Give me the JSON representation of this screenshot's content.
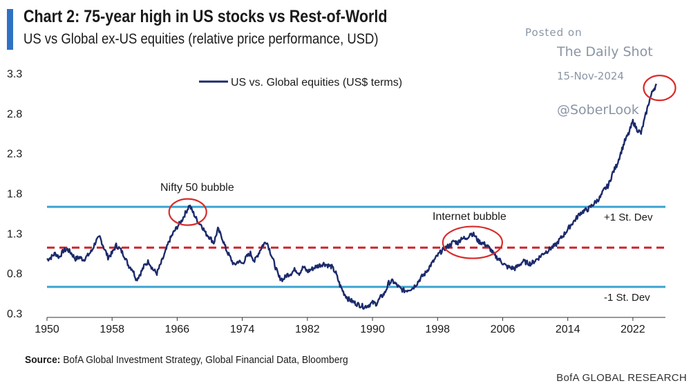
{
  "header": {
    "title": "Chart 2: 75-year high in US stocks vs Rest-of-World",
    "subtitle": "US vs Global ex-US equities (relative price performance, USD)"
  },
  "watermark": {
    "posted": "Posted on",
    "site": "The Daily Shot",
    "date": "15-Nov-2024",
    "handle": "@SoberLook"
  },
  "footer": {
    "source_label": "Source:",
    "source_text": "BofA Global Investment Strategy, Global Financial Data, Bloomberg",
    "brand": "BofA GLOBAL RESEARCH"
  },
  "colors": {
    "series": "#1b2a6b",
    "std_lines": "#3aa3d0",
    "mean_line": "#cc2229",
    "highlight_circles": "#d92b2b",
    "accent_bar": "#2f72c4",
    "axis": "#333333"
  },
  "chart_data": {
    "type": "line",
    "title": "Chart 2: 75-year high in US stocks vs Rest-of-World",
    "xlim": [
      1950,
      2026
    ],
    "ylim": [
      0.3,
      3.3
    ],
    "x_ticks": [
      1950,
      1958,
      1966,
      1974,
      1982,
      1990,
      1998,
      2006,
      2014,
      2022
    ],
    "y_ticks": [
      0.3,
      0.8,
      1.3,
      1.8,
      2.3,
      2.8,
      3.3
    ],
    "y_tick_labels": [
      "0.3",
      "0.8",
      "1.3",
      "1.8",
      "2.3",
      "2.8",
      "3.3"
    ],
    "legend": {
      "label": "US vs. Global equities (US$ terms)",
      "position": "top-left"
    },
    "grid": false,
    "series": [
      {
        "name": "US vs. Global equities (US$ terms)",
        "points": [
          [
            1950.0,
            0.97
          ],
          [
            1950.5,
            1.0
          ],
          [
            1951.0,
            1.05
          ],
          [
            1951.5,
            1.0
          ],
          [
            1952.0,
            1.08
          ],
          [
            1952.5,
            1.1
          ],
          [
            1953.0,
            1.05
          ],
          [
            1953.5,
            0.98
          ],
          [
            1954.0,
            1.0
          ],
          [
            1954.5,
            0.97
          ],
          [
            1955.0,
            1.02
          ],
          [
            1955.5,
            1.08
          ],
          [
            1956.0,
            1.2
          ],
          [
            1956.5,
            1.25
          ],
          [
            1957.0,
            1.12
          ],
          [
            1957.5,
            1.0
          ],
          [
            1958.0,
            1.05
          ],
          [
            1958.5,
            1.15
          ],
          [
            1959.0,
            1.1
          ],
          [
            1959.5,
            1.02
          ],
          [
            1960.0,
            0.9
          ],
          [
            1960.5,
            0.85
          ],
          [
            1961.0,
            0.72
          ],
          [
            1961.5,
            0.8
          ],
          [
            1962.0,
            0.9
          ],
          [
            1962.5,
            0.95
          ],
          [
            1963.0,
            0.85
          ],
          [
            1963.5,
            0.8
          ],
          [
            1964.0,
            0.92
          ],
          [
            1964.5,
            1.05
          ],
          [
            1965.0,
            1.2
          ],
          [
            1965.5,
            1.3
          ],
          [
            1966.0,
            1.38
          ],
          [
            1966.5,
            1.45
          ],
          [
            1967.0,
            1.55
          ],
          [
            1967.5,
            1.65
          ],
          [
            1968.0,
            1.55
          ],
          [
            1968.5,
            1.45
          ],
          [
            1969.0,
            1.4
          ],
          [
            1969.5,
            1.3
          ],
          [
            1970.0,
            1.25
          ],
          [
            1970.5,
            1.18
          ],
          [
            1971.0,
            1.35
          ],
          [
            1971.5,
            1.25
          ],
          [
            1972.0,
            1.1
          ],
          [
            1972.5,
            1.0
          ],
          [
            1973.0,
            0.9
          ],
          [
            1973.5,
            0.95
          ],
          [
            1974.0,
            0.92
          ],
          [
            1974.5,
            1.0
          ],
          [
            1975.0,
            1.05
          ],
          [
            1975.5,
            0.95
          ],
          [
            1976.0,
            1.05
          ],
          [
            1976.5,
            1.15
          ],
          [
            1977.0,
            1.2
          ],
          [
            1977.5,
            1.05
          ],
          [
            1978.0,
            0.9
          ],
          [
            1978.5,
            0.75
          ],
          [
            1979.0,
            0.72
          ],
          [
            1979.5,
            0.78
          ],
          [
            1980.0,
            0.8
          ],
          [
            1980.5,
            0.85
          ],
          [
            1981.0,
            0.8
          ],
          [
            1981.5,
            0.88
          ],
          [
            1982.0,
            0.82
          ],
          [
            1982.5,
            0.85
          ],
          [
            1983.0,
            0.88
          ],
          [
            1983.5,
            0.9
          ],
          [
            1984.0,
            0.92
          ],
          [
            1984.5,
            0.9
          ],
          [
            1985.0,
            0.88
          ],
          [
            1985.5,
            0.8
          ],
          [
            1986.0,
            0.65
          ],
          [
            1986.5,
            0.55
          ],
          [
            1987.0,
            0.48
          ],
          [
            1987.5,
            0.45
          ],
          [
            1988.0,
            0.42
          ],
          [
            1988.5,
            0.4
          ],
          [
            1989.0,
            0.38
          ],
          [
            1989.5,
            0.4
          ],
          [
            1990.0,
            0.43
          ],
          [
            1990.5,
            0.42
          ],
          [
            1991.0,
            0.5
          ],
          [
            1991.5,
            0.55
          ],
          [
            1992.0,
            0.68
          ],
          [
            1992.5,
            0.7
          ],
          [
            1993.0,
            0.65
          ],
          [
            1993.5,
            0.6
          ],
          [
            1994.0,
            0.58
          ],
          [
            1994.5,
            0.6
          ],
          [
            1995.0,
            0.62
          ],
          [
            1995.5,
            0.68
          ],
          [
            1996.0,
            0.75
          ],
          [
            1996.5,
            0.8
          ],
          [
            1997.0,
            0.88
          ],
          [
            1997.5,
            0.95
          ],
          [
            1998.0,
            1.02
          ],
          [
            1998.5,
            1.08
          ],
          [
            1999.0,
            1.12
          ],
          [
            1999.5,
            1.15
          ],
          [
            2000.0,
            1.2
          ],
          [
            2000.5,
            1.18
          ],
          [
            2001.0,
            1.25
          ],
          [
            2001.5,
            1.22
          ],
          [
            2002.0,
            1.3
          ],
          [
            2002.5,
            1.28
          ],
          [
            2003.0,
            1.2
          ],
          [
            2003.5,
            1.18
          ],
          [
            2004.0,
            1.15
          ],
          [
            2004.5,
            1.1
          ],
          [
            2005.0,
            1.02
          ],
          [
            2005.5,
            0.98
          ],
          [
            2006.0,
            0.93
          ],
          [
            2006.5,
            0.88
          ],
          [
            2007.0,
            0.87
          ],
          [
            2007.5,
            0.86
          ],
          [
            2008.0,
            0.9
          ],
          [
            2008.5,
            0.95
          ],
          [
            2009.0,
            0.93
          ],
          [
            2009.5,
            0.92
          ],
          [
            2010.0,
            0.96
          ],
          [
            2010.5,
            1.0
          ],
          [
            2011.0,
            1.05
          ],
          [
            2011.5,
            1.08
          ],
          [
            2012.0,
            1.12
          ],
          [
            2012.5,
            1.15
          ],
          [
            2013.0,
            1.22
          ],
          [
            2013.5,
            1.28
          ],
          [
            2014.0,
            1.35
          ],
          [
            2014.5,
            1.42
          ],
          [
            2015.0,
            1.48
          ],
          [
            2015.5,
            1.55
          ],
          [
            2016.0,
            1.58
          ],
          [
            2016.5,
            1.6
          ],
          [
            2017.0,
            1.65
          ],
          [
            2017.5,
            1.7
          ],
          [
            2018.0,
            1.75
          ],
          [
            2018.5,
            1.85
          ],
          [
            2019.0,
            1.9
          ],
          [
            2019.5,
            2.05
          ],
          [
            2020.0,
            2.15
          ],
          [
            2020.5,
            2.3
          ],
          [
            2021.0,
            2.45
          ],
          [
            2021.5,
            2.55
          ],
          [
            2022.0,
            2.7
          ],
          [
            2022.5,
            2.6
          ],
          [
            2023.0,
            2.55
          ],
          [
            2023.5,
            2.75
          ],
          [
            2024.0,
            2.95
          ],
          [
            2024.5,
            3.1
          ],
          [
            2024.9,
            3.15
          ]
        ]
      }
    ],
    "reference_lines": [
      {
        "name": "+1 St. Dev",
        "y": 1.63,
        "style": "solid",
        "color": "#3aa3d0"
      },
      {
        "name": "mean",
        "y": 1.12,
        "style": "dashed",
        "color": "#cc2229"
      },
      {
        "name": "-1 St. Dev",
        "y": 0.63,
        "style": "solid",
        "color": "#3aa3d0"
      }
    ],
    "annotations": [
      {
        "text": "Nifty 50 bubble",
        "x": 1967.3,
        "y": 1.6
      },
      {
        "text": "Internet bubble",
        "x": 2002.3,
        "y": 1.22
      },
      {
        "text": "",
        "x": 2024.6,
        "y": 3.1
      }
    ]
  }
}
